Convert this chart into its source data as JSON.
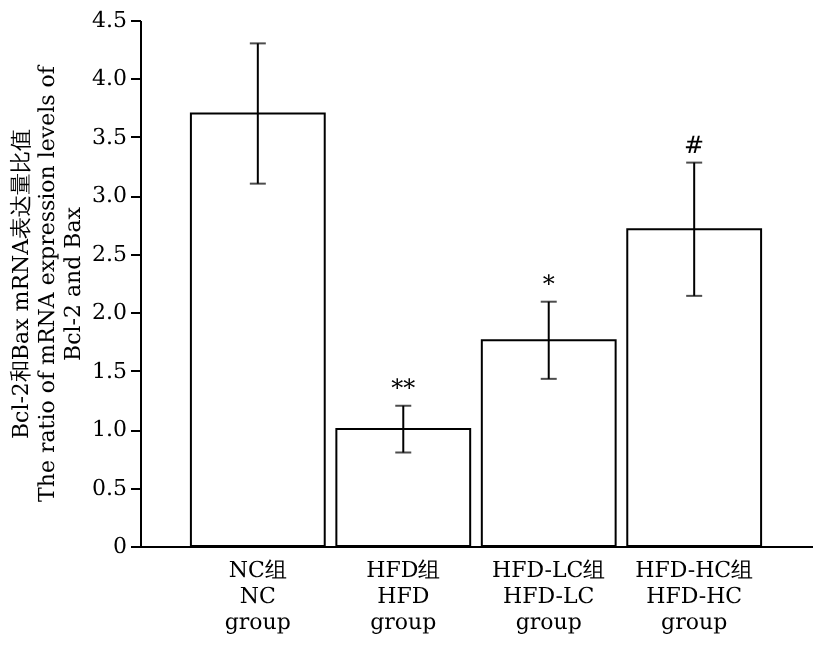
{
  "chart_data": {
    "type": "bar",
    "ylabel": [
      "Bcl-2和Bax mRNA表达量比值",
      "The ratio of mRNA expression levels of",
      "Bcl-2  and Bax"
    ],
    "categories": [
      "NC组\nNC\ngroup",
      "HFD组\nHFD\ngroup",
      "HFD-LC组\nHFD-LC\ngroup",
      "HFD-HC组\nHFD-HC\ngroup"
    ],
    "values": [
      3.7,
      1.0,
      1.76,
      2.71
    ],
    "errors": [
      0.6,
      0.2,
      0.33,
      0.57
    ],
    "color": "#ffffff",
    "ylim": [
      0,
      4.5
    ],
    "yticks": [
      {
        "value": 0,
        "label": "0"
      },
      {
        "value": 0.5,
        "label": "0.5"
      },
      {
        "value": 1.0,
        "label": "1.0"
      },
      {
        "value": 1.5,
        "label": "1.5"
      },
      {
        "value": 2.0,
        "label": "2.0"
      },
      {
        "value": 2.5,
        "label": "2.5"
      },
      {
        "value": 3.0,
        "label": "3.0"
      },
      {
        "value": 3.5,
        "label": "3.5"
      },
      {
        "value": 4.0,
        "label": "4.0"
      },
      {
        "value": 4.5,
        "label": "4.5"
      }
    ],
    "annotations": [
      {
        "text": "**",
        "x": "HFD组\nHFD\ngroup",
        "y": 1.2
      },
      {
        "text": "*",
        "x": "HFD-LC组\nHFD-LC\ngroup",
        "y": 2.09
      },
      {
        "text": "#",
        "x": "HFD-HC组\nHFD-HC\ngroup",
        "y": 3.28
      }
    ],
    "grid": false
  }
}
